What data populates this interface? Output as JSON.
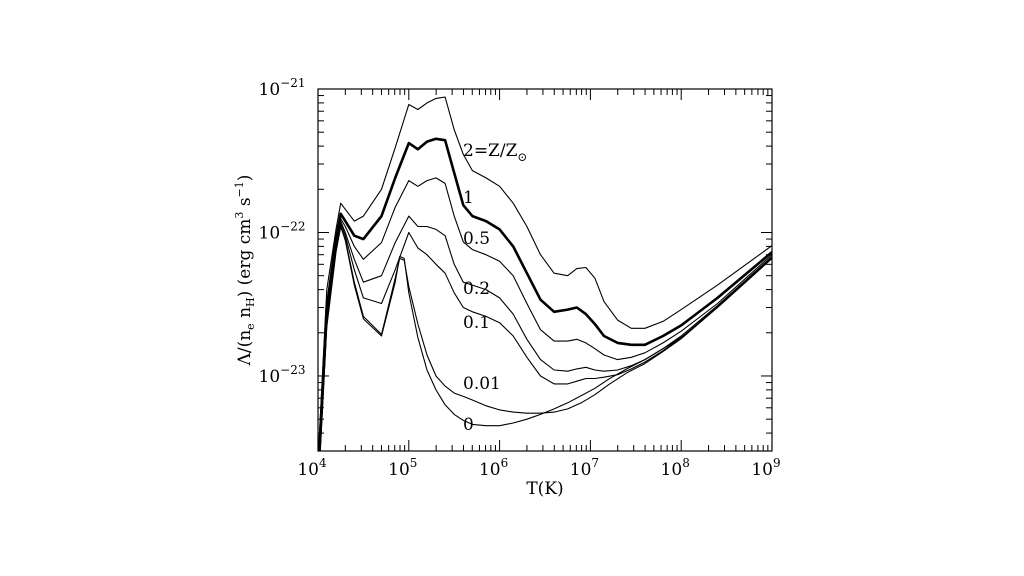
{
  "chart_data": {
    "type": "line",
    "xlabel": "T(K)",
    "ylabel": {
      "prefix": "Λ/(n",
      "sub_e": "e",
      "mid": " n",
      "sub_h": "H",
      "suffix1": ") (erg cm",
      "sup3": "3",
      "suffix2": " s",
      "supm1": "−1",
      "suffix3": ")"
    },
    "xscale": "log",
    "yscale": "log",
    "xlim": [
      10000,
      1000000000
    ],
    "ylim": [
      3e-24,
      1e-21
    ],
    "x_ticks": [
      {
        "base": "10",
        "exp": "4",
        "value": 10000
      },
      {
        "base": "10",
        "exp": "5",
        "value": 100000
      },
      {
        "base": "10",
        "exp": "6",
        "value": 1000000
      },
      {
        "base": "10",
        "exp": "7",
        "value": 10000000
      },
      {
        "base": "10",
        "exp": "8",
        "value": 100000000
      },
      {
        "base": "10",
        "exp": "9",
        "value": 1000000000
      }
    ],
    "y_ticks": [
      {
        "base": "10",
        "exp": "−21",
        "value": 1e-21
      },
      {
        "base": "10",
        "exp": "−22",
        "value": 1e-22
      },
      {
        "base": "10",
        "exp": "−23",
        "value": 1e-23
      }
    ],
    "grid": false,
    "series": [
      {
        "name": "2=Z/Z⊙",
        "label_main": "2=Z/Z",
        "label_sub": "⊙",
        "bold": false,
        "x": [
          10000,
          12500,
          15800,
          17800,
          20000,
          25100,
          31600,
          50100,
          70800,
          100000,
          125900,
          158500,
          199500,
          251200,
          316200,
          398100,
          501200,
          707900,
          1000000,
          1412500,
          2000000,
          2818400,
          3981100,
          5623400,
          7079500,
          8912500,
          11220200,
          14125400,
          19952600,
          28183800,
          39810700,
          63095700,
          100000000,
          251188600,
          1000000000
        ],
        "y": [
          2.5e-24,
          4e-23,
          1.05e-22,
          1.6e-22,
          1.45e-22,
          1.2e-22,
          1.3e-22,
          2e-22,
          3.9e-22,
          7.8e-22,
          7.2e-22,
          8e-22,
          8.6e-22,
          8.8e-22,
          5.2e-22,
          3.5e-22,
          2.7e-22,
          2.4e-22,
          2.1e-22,
          1.6e-22,
          1.1e-22,
          7e-23,
          5.2e-23,
          5e-23,
          5.6e-23,
          5.7e-23,
          4.8e-23,
          3.3e-23,
          2.45e-23,
          2.15e-23,
          2.15e-23,
          2.4e-23,
          2.9e-23,
          4.3e-23,
          8.1e-23
        ]
      },
      {
        "name": "1",
        "label_main": "1",
        "label_sub": "",
        "bold": true,
        "x": [
          10000,
          12500,
          15800,
          17800,
          20000,
          25100,
          31600,
          50100,
          70800,
          100000,
          125900,
          158500,
          199500,
          251200,
          316200,
          398100,
          501200,
          707900,
          1000000,
          1412500,
          2000000,
          2818400,
          3981100,
          5623400,
          7079500,
          8912500,
          11220200,
          14125400,
          19952600,
          28183800,
          39810700,
          63095700,
          100000000,
          251188600,
          1000000000
        ],
        "y": [
          2e-24,
          3e-23,
          9e-23,
          1.35e-22,
          1.2e-22,
          9.5e-23,
          9e-23,
          1.3e-22,
          2.4e-22,
          4.2e-22,
          3.8e-22,
          4.3e-22,
          4.5e-22,
          4.4e-22,
          2.6e-22,
          1.55e-22,
          1.3e-22,
          1.2e-22,
          1.05e-22,
          8e-23,
          5.2e-23,
          3.4e-23,
          2.8e-23,
          2.9e-23,
          3e-23,
          2.7e-23,
          2.3e-23,
          1.9e-23,
          1.7e-23,
          1.65e-23,
          1.65e-23,
          1.9e-23,
          2.25e-23,
          3.5e-23,
          7.3e-23
        ]
      },
      {
        "name": "0.5",
        "label_main": "0.5",
        "label_sub": "",
        "bold": false,
        "x": [
          10000,
          12500,
          15800,
          17800,
          20000,
          25100,
          31600,
          50100,
          70800,
          100000,
          125900,
          158500,
          199500,
          251200,
          316200,
          398100,
          501200,
          707900,
          1000000,
          1412500,
          2000000,
          2818400,
          3981100,
          5623400,
          7079500,
          8912500,
          11220200,
          14125400,
          19952600,
          28183800,
          39810700,
          63095700,
          100000000,
          251188600,
          1000000000
        ],
        "y": [
          1.8e-24,
          2.7e-23,
          8.5e-23,
          1.25e-22,
          1.1e-22,
          8e-23,
          6.5e-23,
          8.5e-23,
          1.5e-22,
          2.3e-22,
          2.1e-22,
          2.3e-22,
          2.4e-22,
          2.2e-22,
          1.3e-22,
          8.6e-23,
          7.6e-23,
          7e-23,
          6.3e-23,
          5e-23,
          3.2e-23,
          2.1e-23,
          1.75e-23,
          1.75e-23,
          1.8e-23,
          1.7e-23,
          1.55e-23,
          1.4e-23,
          1.3e-23,
          1.35e-23,
          1.45e-23,
          1.7e-23,
          2.05e-23,
          3.2e-23,
          7e-23
        ]
      },
      {
        "name": "0.2",
        "label_main": "0.2",
        "label_sub": "",
        "bold": false,
        "x": [
          10000,
          12500,
          15800,
          17800,
          20000,
          25100,
          31600,
          50100,
          70800,
          100000,
          125900,
          158500,
          199500,
          251200,
          316200,
          398100,
          501200,
          707900,
          1000000,
          1412500,
          2000000,
          2818400,
          3981100,
          5623400,
          7079500,
          8912500,
          11220200,
          14125400,
          19952600,
          28183800,
          39810700,
          63095700,
          100000000,
          251188600,
          1000000000
        ],
        "y": [
          1.7e-24,
          2.5e-23,
          8e-23,
          1.2e-22,
          1e-22,
          6.5e-23,
          4.5e-23,
          5e-23,
          8.5e-23,
          1.3e-22,
          1.1e-22,
          1.1e-22,
          1.05e-22,
          9.5e-23,
          6e-23,
          4.5e-23,
          4.3e-23,
          4e-23,
          3.5e-23,
          2.7e-23,
          1.8e-23,
          1.3e-23,
          1.1e-23,
          1.08e-23,
          1.12e-23,
          1.15e-23,
          1.1e-23,
          1.08e-23,
          1.1e-23,
          1.18e-23,
          1.3e-23,
          1.55e-23,
          1.9e-23,
          3.1e-23,
          6.8e-23
        ]
      },
      {
        "name": "0.1",
        "label_main": "0.1",
        "label_sub": "",
        "bold": false,
        "x": [
          10000,
          12500,
          15800,
          17800,
          20000,
          25100,
          31600,
          50100,
          70800,
          100000,
          125900,
          158500,
          199500,
          251200,
          316200,
          398100,
          501200,
          707900,
          1000000,
          1412500,
          2000000,
          2818400,
          3981100,
          5623400,
          7079500,
          8912500,
          11220200,
          14125400,
          19952600,
          28183800,
          39810700,
          63095700,
          100000000,
          251188600,
          1000000000
        ],
        "y": [
          1.6e-24,
          2.4e-23,
          7.8e-23,
          1.15e-22,
          9.5e-23,
          5.5e-23,
          3.5e-23,
          3.2e-23,
          5.5e-23,
          1e-22,
          7.8e-23,
          7e-23,
          6e-23,
          5.2e-23,
          3.8e-23,
          3e-23,
          2.8e-23,
          2.6e-23,
          2.35e-23,
          1.9e-23,
          1.35e-23,
          1e-23,
          8.8e-24,
          8.8e-24,
          9.2e-24,
          9.6e-24,
          9.6e-24,
          9.8e-24,
          1.02e-23,
          1.12e-23,
          1.25e-23,
          1.5e-23,
          1.85e-23,
          3.05e-23,
          6.7e-23
        ]
      },
      {
        "name": "0.01",
        "label_main": "0.01",
        "label_sub": "",
        "bold": false,
        "x": [
          10000,
          12500,
          15800,
          17800,
          20000,
          25100,
          31600,
          50100,
          70800,
          79400,
          89100,
          100000,
          125900,
          158500,
          199500,
          251200,
          316200,
          398100,
          501200,
          707900,
          1000000,
          1412500,
          2000000,
          2818400,
          3981100,
          5623400,
          7943300,
          11220200,
          15848900,
          25118900,
          39810700,
          63095700,
          100000000,
          251188600,
          1000000000
        ],
        "y": [
          1.5e-24,
          2.3e-23,
          7.5e-23,
          1.1e-22,
          9e-23,
          4.5e-23,
          2.6e-23,
          1.95e-23,
          4.8e-23,
          6.6e-23,
          6.4e-23,
          4.2e-23,
          2.3e-23,
          1.4e-23,
          1e-23,
          8.5e-24,
          7.6e-24,
          7.2e-24,
          6.8e-24,
          6.2e-24,
          5.8e-24,
          5.6e-24,
          5.5e-24,
          5.5e-24,
          5.6e-24,
          5.9e-24,
          6.5e-24,
          7.4e-24,
          8.7e-24,
          1.05e-23,
          1.22e-23,
          1.48e-23,
          1.82e-23,
          3e-23,
          6.6e-23
        ]
      },
      {
        "name": "0",
        "label_main": "0",
        "label_sub": "",
        "bold": false,
        "x": [
          10000,
          12500,
          15800,
          17800,
          20000,
          25100,
          31600,
          50100,
          70800,
          79400,
          89100,
          100000,
          125900,
          158500,
          199500,
          251200,
          316200,
          398100,
          501200,
          707900,
          1000000,
          1412500,
          2000000,
          2818400,
          3981100,
          5623400,
          7943300,
          11220200,
          15848900,
          25118900,
          39810700,
          63095700,
          100000000,
          251188600,
          1000000000
        ],
        "y": [
          1.5e-24,
          2.2e-23,
          7.3e-23,
          1.1e-22,
          8.8e-23,
          4.3e-23,
          2.5e-23,
          1.9e-23,
          4.5e-23,
          6.8e-23,
          6.6e-23,
          3.8e-23,
          1.85e-23,
          1.1e-23,
          8e-24,
          6.3e-24,
          5.4e-24,
          4.9e-24,
          4.6e-24,
          4.5e-24,
          4.5e-24,
          4.7e-24,
          5e-24,
          5.4e-24,
          5.9e-24,
          6.5e-24,
          7.3e-24,
          8.2e-24,
          9.5e-24,
          1.12e-23,
          1.3e-23,
          1.55e-23,
          1.85e-23,
          3e-23,
          6.6e-23
        ]
      }
    ]
  }
}
